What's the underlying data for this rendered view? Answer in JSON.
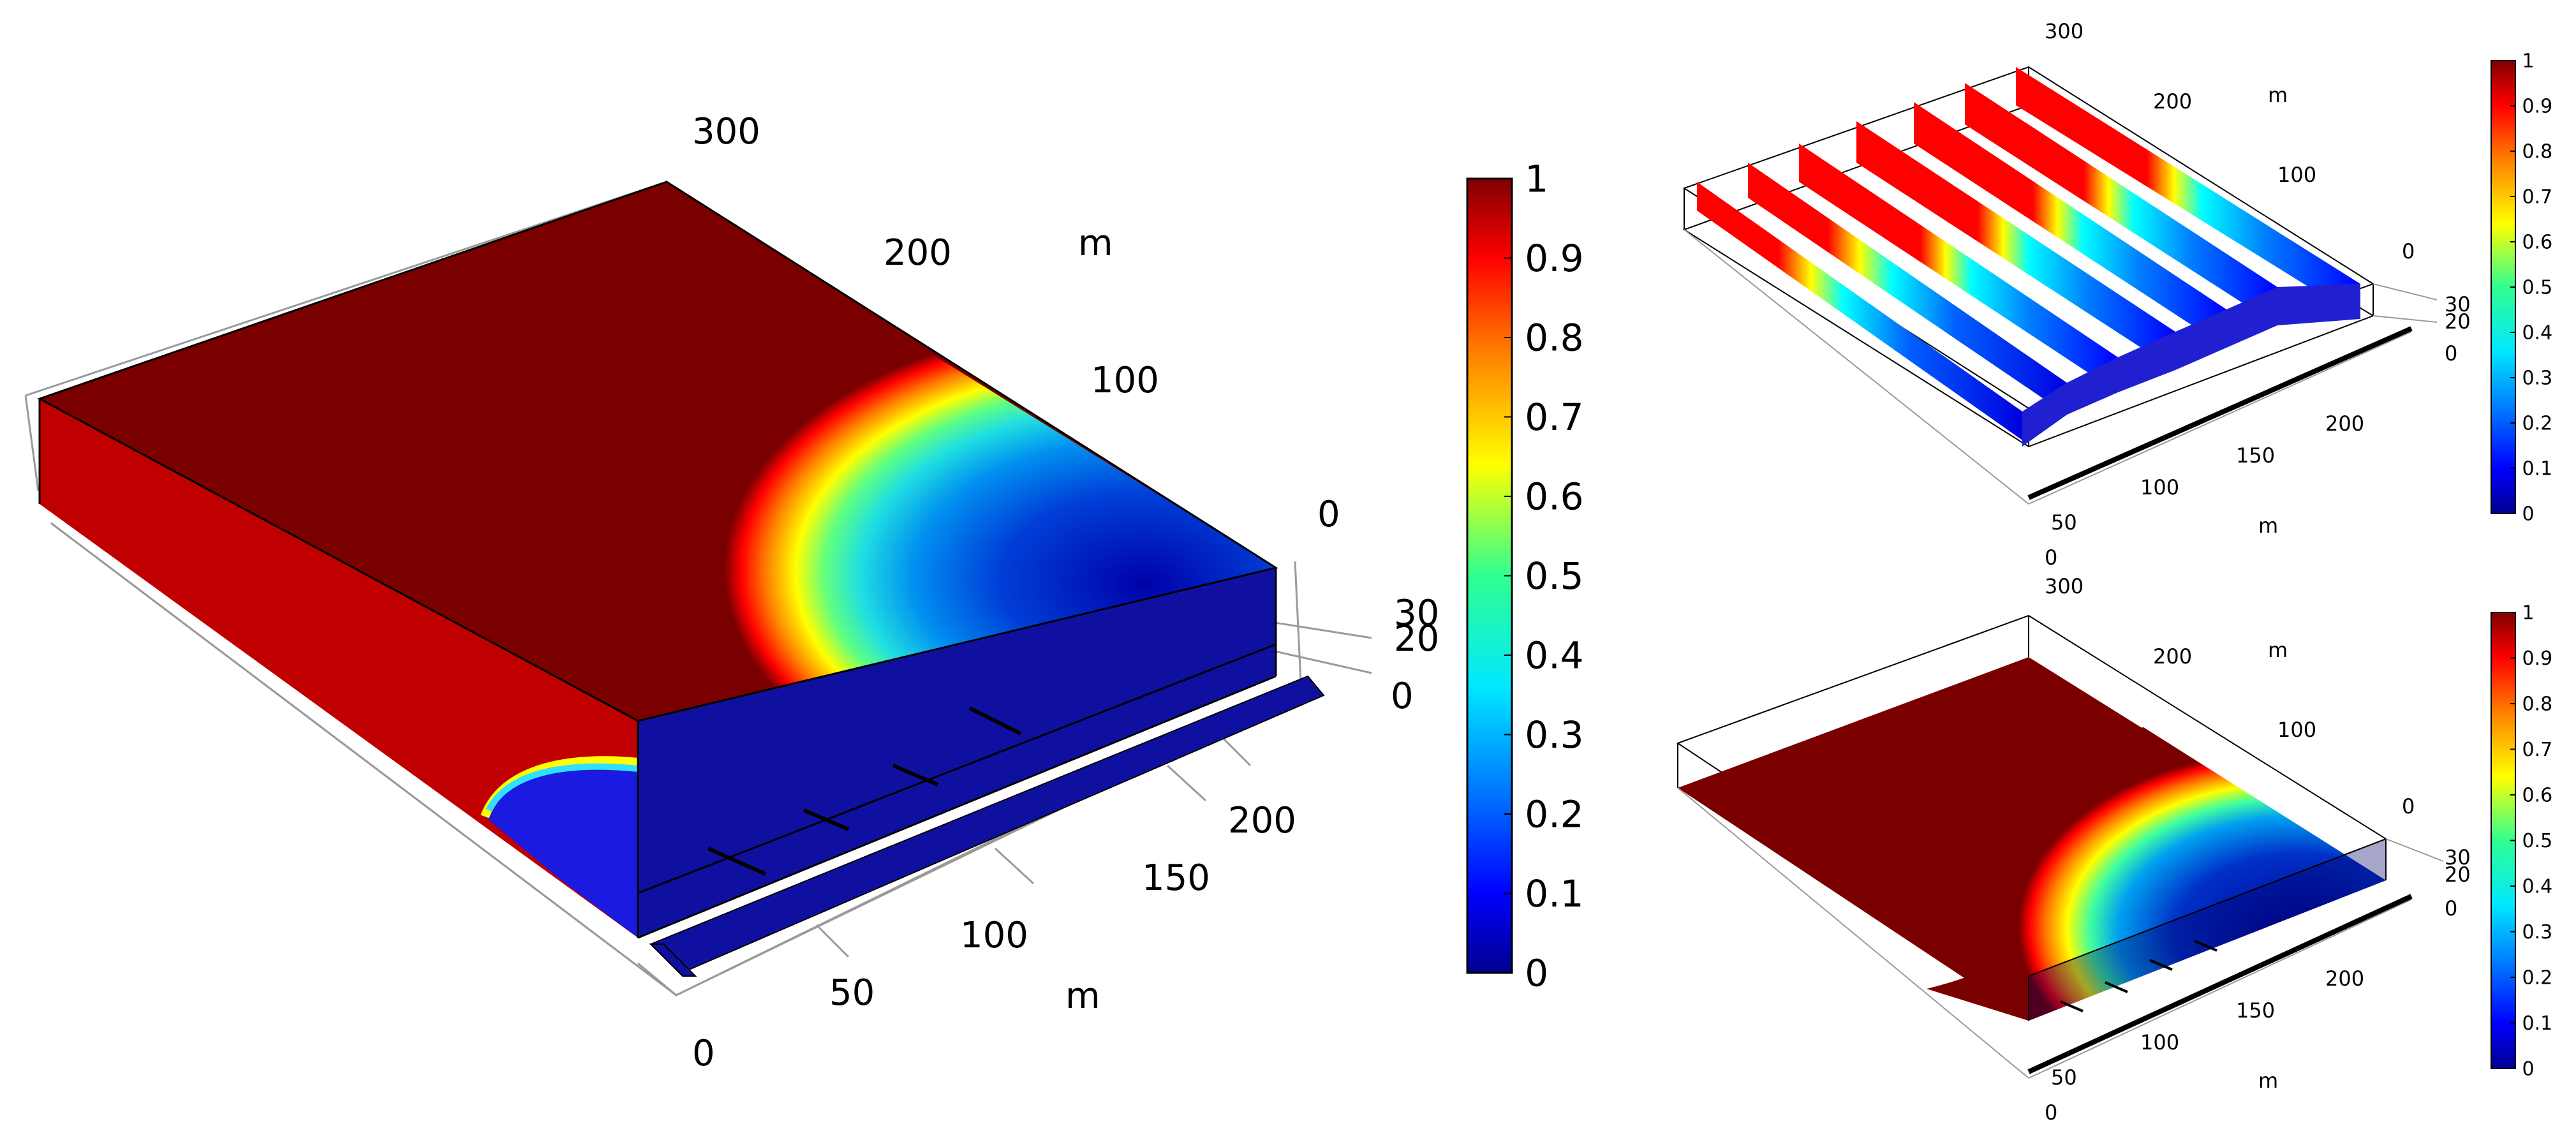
{
  "colors": {
    "scale": [
      "#00008f",
      "#0000ff",
      "#0080ff",
      "#00ffff",
      "#80ff80",
      "#ffff00",
      "#ff8000",
      "#ff0000",
      "#800000"
    ],
    "dark_red": "#7a0000",
    "side_red": "#c00000",
    "dark_blue": "#10108a",
    "grid": "#9a9a9a",
    "frame": "#000000"
  },
  "chart_data": [
    {
      "type": "heatmap",
      "view": "main-top-surface",
      "title": "",
      "colorbar": {
        "min": 0,
        "max": 1,
        "ticks": [
          {
            "v": 1,
            "t": "1"
          },
          {
            "v": 0.9,
            "t": "0.9"
          },
          {
            "v": 0.8,
            "t": "0.8"
          },
          {
            "v": 0.7,
            "t": "0.7"
          },
          {
            "v": 0.6,
            "t": "0.6"
          },
          {
            "v": 0.5,
            "t": "0.5"
          },
          {
            "v": 0.4,
            "t": "0.4"
          },
          {
            "v": 0.3,
            "t": "0.3"
          },
          {
            "v": 0.2,
            "t": "0.2"
          },
          {
            "v": 0.1,
            "t": "0.1"
          },
          {
            "v": 0,
            "t": "0"
          }
        ]
      },
      "axes": {
        "x": {
          "unit": "m",
          "range": [
            0,
            250
          ],
          "ticks": [
            "0",
            "50",
            "100",
            "150",
            "200"
          ]
        },
        "y": {
          "unit": "m",
          "range": [
            0,
            300
          ],
          "ticks": [
            "0",
            "100",
            "200",
            "300"
          ]
        },
        "z": {
          "range": [
            0,
            35
          ],
          "ticks": [
            "0",
            "20",
            "30"
          ]
        }
      }
    },
    {
      "type": "heatmap",
      "view": "vertical-slices",
      "title": "",
      "colorbar": {
        "min": 0,
        "max": 1,
        "ticks": [
          {
            "v": 1,
            "t": "1"
          },
          {
            "v": 0.9,
            "t": "0.9"
          },
          {
            "v": 0.8,
            "t": "0.8"
          },
          {
            "v": 0.7,
            "t": "0.7"
          },
          {
            "v": 0.6,
            "t": "0.6"
          },
          {
            "v": 0.5,
            "t": "0.5"
          },
          {
            "v": 0.4,
            "t": "0.4"
          },
          {
            "v": 0.3,
            "t": "0.3"
          },
          {
            "v": 0.2,
            "t": "0.2"
          },
          {
            "v": 0.1,
            "t": "0.1"
          },
          {
            "v": 0,
            "t": "0"
          }
        ]
      },
      "axes": {
        "x": {
          "unit": "m",
          "range": [
            0,
            250
          ],
          "ticks": [
            "0",
            "50",
            "100",
            "150",
            "200"
          ]
        },
        "y": {
          "unit": "m",
          "range": [
            0,
            300
          ],
          "ticks": [
            "0",
            "100",
            "200",
            "300"
          ]
        },
        "z": {
          "range": [
            0,
            35
          ],
          "ticks": [
            "0",
            "20",
            "30"
          ]
        }
      }
    },
    {
      "type": "heatmap",
      "view": "horizontal-slice",
      "title": "",
      "colorbar": {
        "min": 0,
        "max": 1,
        "ticks": [
          {
            "v": 1,
            "t": "1"
          },
          {
            "v": 0.9,
            "t": "0.9"
          },
          {
            "v": 0.8,
            "t": "0.8"
          },
          {
            "v": 0.7,
            "t": "0.7"
          },
          {
            "v": 0.6,
            "t": "0.6"
          },
          {
            "v": 0.5,
            "t": "0.5"
          },
          {
            "v": 0.4,
            "t": "0.4"
          },
          {
            "v": 0.3,
            "t": "0.3"
          },
          {
            "v": 0.2,
            "t": "0.2"
          },
          {
            "v": 0.1,
            "t": "0.1"
          },
          {
            "v": 0,
            "t": "0"
          }
        ]
      },
      "axes": {
        "x": {
          "unit": "m",
          "range": [
            0,
            250
          ],
          "ticks": [
            "0",
            "50",
            "100",
            "150",
            "200"
          ]
        },
        "y": {
          "unit": "m",
          "range": [
            0,
            300
          ],
          "ticks": [
            "0",
            "100",
            "200",
            "300"
          ]
        },
        "z": {
          "range": [
            0,
            35
          ],
          "ticks": [
            "0",
            "20",
            "30"
          ]
        }
      }
    }
  ]
}
